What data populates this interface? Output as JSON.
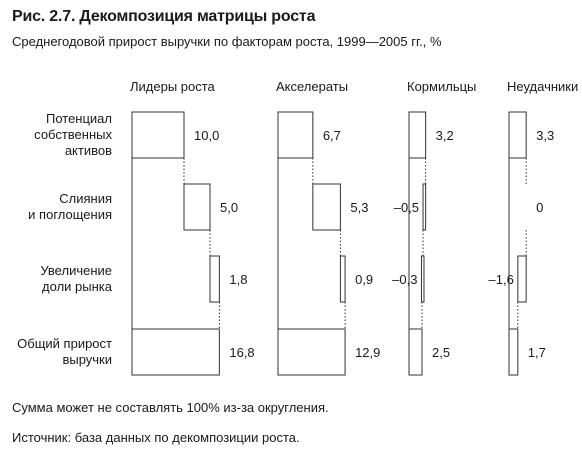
{
  "title": "Рис. 2.7. Декомпозиция матрицы роста",
  "subtitle": "Среднегодовой прирост выручки по факторам роста, 1999—2005 гг., %",
  "footnote": "Сумма может не составлять 100% из-за округления.",
  "source": "Источник: база данных по декомпозиции роста.",
  "chart_data": {
    "type": "bar",
    "subtype": "waterfall",
    "categories": [
      [
        "Потенциал",
        "собственных",
        "активов"
      ],
      [
        "Слияния",
        "и поглощения"
      ],
      [
        "Увеличение",
        "доли рынка"
      ],
      [
        "Общий прирост",
        "выручки"
      ]
    ],
    "series": [
      {
        "name": "Лидеры роста",
        "values": [
          10.0,
          5.0,
          1.8,
          16.8
        ],
        "labels": [
          "10,0",
          "5,0",
          "1,8",
          "16,8"
        ]
      },
      {
        "name": "Акселераты",
        "values": [
          6.7,
          5.3,
          0.9,
          12.9
        ],
        "labels": [
          "6,7",
          "5,3",
          "0,9",
          "12,9"
        ]
      },
      {
        "name": "Кормильцы",
        "values": [
          3.2,
          -0.5,
          -0.3,
          2.5
        ],
        "labels": [
          "3,2",
          "–0,5",
          "–0,3",
          "2,5"
        ]
      },
      {
        "name": "Неудачники",
        "values": [
          3.3,
          0,
          -1.6,
          1.7
        ],
        "labels": [
          "3,3",
          "0",
          "–1,6",
          "1,7"
        ]
      }
    ],
    "ylabel": "%",
    "grid": false,
    "legend": "none"
  }
}
